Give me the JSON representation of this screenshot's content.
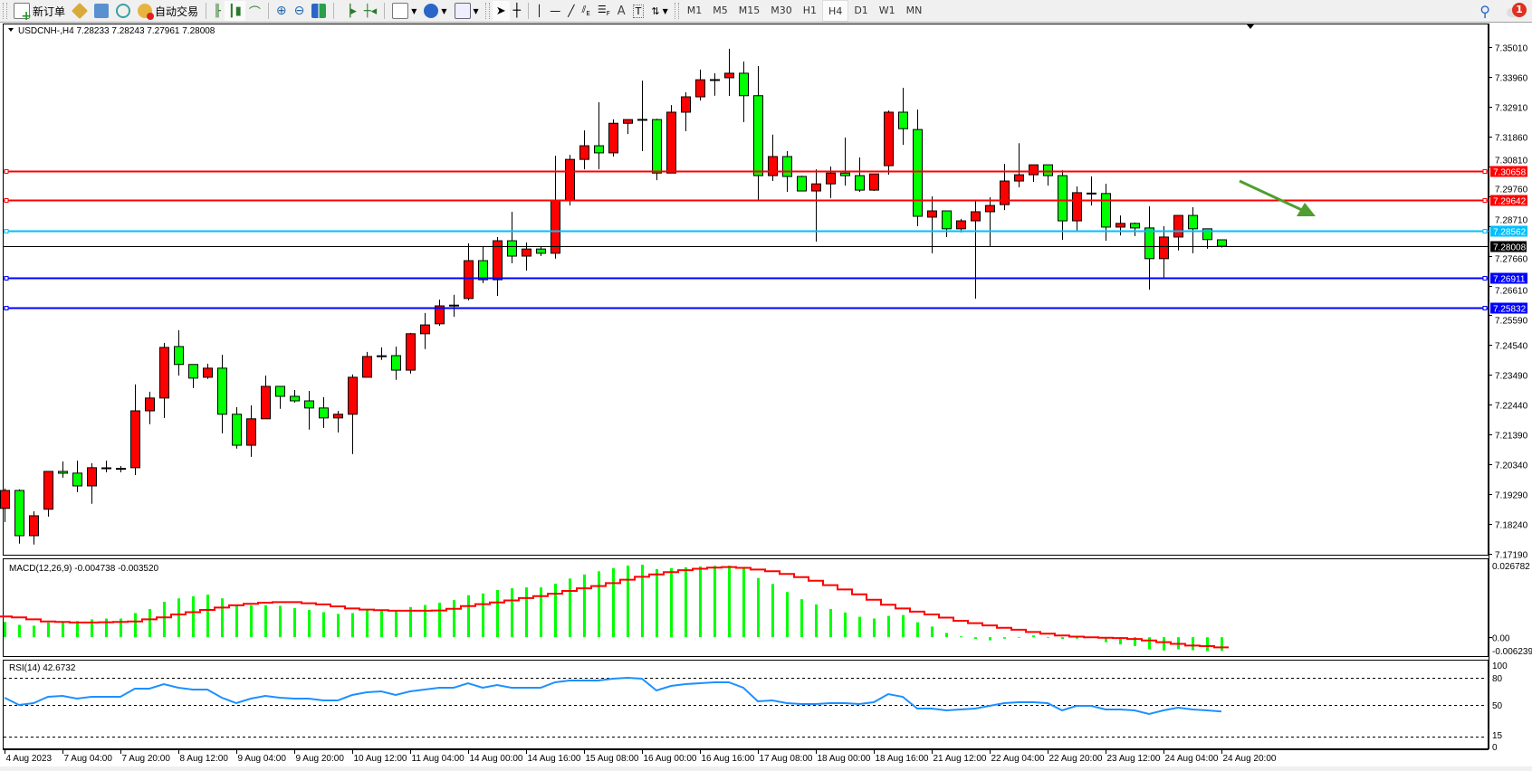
{
  "toolbar": {
    "new_order_label": "新订单",
    "auto_trading_label": "自动交易",
    "timeframes": [
      "M1",
      "M5",
      "M15",
      "M30",
      "H1",
      "H4",
      "D1",
      "W1",
      "MN"
    ],
    "active_timeframe": "H4",
    "notification_count": "1",
    "icons": [
      "new-order-icon",
      "market-watch-icon",
      "data-window-icon",
      "signals-icon",
      "auto-trading-icon",
      "bar-chart-icon",
      "candlestick-icon",
      "line-chart-icon",
      "zoom-in-icon",
      "zoom-out-icon",
      "tile-windows-icon",
      "chart-shift-icon",
      "auto-scroll-icon",
      "indicators-icon",
      "periods-icon",
      "templates-icon",
      "cursor-icon",
      "crosshair-icon",
      "vertical-line-icon",
      "horizontal-line-icon",
      "trendline-icon",
      "equidistant-channel-icon",
      "fibonacci-icon",
      "text-icon",
      "text-label-icon",
      "arrows-icon",
      "search-icon",
      "notifications-icon"
    ]
  },
  "chart": {
    "header": "USDCNH-,H4  7.28233 7.28243 7.27961 7.28008",
    "price_ticks": [
      "7.35010",
      "7.33960",
      "7.32910",
      "7.31860",
      "7.30810",
      "7.29760",
      "7.28710",
      "7.27660",
      "7.26610",
      "7.25590",
      "7.24540",
      "7.23490",
      "7.22440",
      "7.21390",
      "7.20340",
      "7.19290",
      "7.18240",
      "7.17190"
    ],
    "horizontal_lines": [
      {
        "price": "7.30658",
        "color": "#ff0000"
      },
      {
        "price": "7.29642",
        "color": "#ff0000"
      },
      {
        "price": "7.28562",
        "color": "#00bfff"
      },
      {
        "price": "7.26911",
        "color": "#0000ff"
      },
      {
        "price": "7.25832",
        "color": "#0000ff"
      }
    ],
    "current_price": "7.28008",
    "time_labels": [
      "4 Aug 2023",
      "7 Aug 04:00",
      "7 Aug 20:00",
      "8 Aug 12:00",
      "9 Aug 04:00",
      "9 Aug 20:00",
      "10 Aug 12:00",
      "11 Aug 04:00",
      "14 Aug 00:00",
      "14 Aug 16:00",
      "15 Aug 08:00",
      "16 Aug 00:00",
      "16 Aug 16:00",
      "17 Aug 08:00",
      "18 Aug 00:00",
      "18 Aug 16:00",
      "21 Aug 12:00",
      "22 Aug 04:00",
      "22 Aug 20:00",
      "23 Aug 12:00",
      "24 Aug 04:00",
      "24 Aug 20:00"
    ],
    "macd_label": "MACD(12,26,9) -0.004738 -0.003520",
    "macd_ticks": [
      "0.026782",
      "0.00",
      "-0.006239"
    ],
    "rsi_label": "RSI(14) 42.6732",
    "rsi_ticks": [
      "100",
      "80",
      "50",
      "15",
      "0"
    ],
    "colors": {
      "bull": "#ff0000",
      "bear": "#00ff00",
      "macd_hist": "#00ff00",
      "macd_signal": "#ff0000",
      "rsi": "#1e90ff",
      "arrow": "#4f9e2f"
    }
  },
  "chart_data": {
    "type": "candlestick",
    "symbol": "USDCNH-",
    "timeframe": "H4",
    "ylim": [
      7.1719,
      7.3501
    ],
    "ohlc": [
      [
        7.1879,
        7.1949,
        7.1831,
        7.1942
      ],
      [
        7.1942,
        7.1946,
        7.1755,
        7.1783
      ],
      [
        7.1783,
        7.1869,
        7.1752,
        7.1853
      ],
      [
        7.1876,
        7.2009,
        7.185,
        7.2009
      ],
      [
        7.2009,
        7.2044,
        7.1987,
        7.2003
      ],
      [
        7.2003,
        7.2047,
        7.1936,
        7.1958
      ],
      [
        7.1958,
        7.2038,
        7.1895,
        7.2022
      ],
      [
        7.2019,
        7.2047,
        7.2006,
        7.202
      ],
      [
        7.2019,
        7.2028,
        7.2006,
        7.2018
      ],
      [
        7.2022,
        7.2315,
        7.1996,
        7.2222
      ],
      [
        7.2222,
        7.2289,
        7.2175,
        7.2267
      ],
      [
        7.2267,
        7.2461,
        7.2197,
        7.2445
      ],
      [
        7.2448,
        7.2505,
        7.2346,
        7.2385
      ],
      [
        7.2385,
        7.2385,
        7.2302,
        7.2337
      ],
      [
        7.234,
        7.2388,
        7.2334,
        7.2372
      ],
      [
        7.2372,
        7.2419,
        7.2143,
        7.221
      ],
      [
        7.221,
        7.2235,
        7.2089,
        7.2101
      ],
      [
        7.2101,
        7.2241,
        7.206,
        7.2194
      ],
      [
        7.2194,
        7.2346,
        7.2194,
        7.2308
      ],
      [
        7.2308,
        7.2308,
        7.2229,
        7.2273
      ],
      [
        7.2273,
        7.2295,
        7.2251,
        7.2257
      ],
      [
        7.2257,
        7.2292,
        7.2156,
        7.2232
      ],
      [
        7.2232,
        7.227,
        7.2162,
        7.2197
      ],
      [
        7.2197,
        7.2222,
        7.2146,
        7.221
      ],
      [
        7.221,
        7.235,
        7.207,
        7.234
      ],
      [
        7.234,
        7.2429,
        7.234,
        7.2413
      ],
      [
        7.2413,
        7.2445,
        7.2401,
        7.2414
      ],
      [
        7.2416,
        7.2448,
        7.2331,
        7.2365
      ],
      [
        7.2365,
        7.2496,
        7.2353,
        7.2493
      ],
      [
        7.2493,
        7.2566,
        7.2439,
        7.2524
      ],
      [
        7.2528,
        7.2613,
        7.2521,
        7.2591
      ],
      [
        7.2591,
        7.263,
        7.2553,
        7.2592
      ],
      [
        7.2617,
        7.2811,
        7.261,
        7.275
      ],
      [
        7.275,
        7.2801,
        7.2671,
        7.2683
      ],
      [
        7.2683,
        7.2833,
        7.2626,
        7.282
      ],
      [
        7.282,
        7.2922,
        7.2741,
        7.2766
      ],
      [
        7.2766,
        7.2814,
        7.2715,
        7.2791
      ],
      [
        7.2791,
        7.2798,
        7.2766,
        7.2776
      ],
      [
        7.2776,
        7.3119,
        7.2757,
        7.2963
      ],
      [
        7.2963,
        7.3122,
        7.2944,
        7.3106
      ],
      [
        7.3106,
        7.3208,
        7.3071,
        7.3154
      ],
      [
        7.3154,
        7.3307,
        7.3071,
        7.3129
      ],
      [
        7.3129,
        7.3247,
        7.3116,
        7.3233
      ],
      [
        7.3233,
        7.3246,
        7.3195,
        7.3246
      ],
      [
        7.3246,
        7.3383,
        7.3135,
        7.3245
      ],
      [
        7.3246,
        7.3249,
        7.3033,
        7.3058
      ],
      [
        7.3058,
        7.3297,
        7.3058,
        7.3272
      ],
      [
        7.3272,
        7.3342,
        7.3205,
        7.3326
      ],
      [
        7.3326,
        7.3422,
        7.3313,
        7.3386
      ],
      [
        7.3386,
        7.3409,
        7.333,
        7.3385
      ],
      [
        7.3393,
        7.3495,
        7.3329,
        7.3409
      ],
      [
        7.3409,
        7.345,
        7.3237,
        7.333
      ],
      [
        7.333,
        7.3434,
        7.296,
        7.3049
      ],
      [
        7.3049,
        7.3193,
        7.303,
        7.3116
      ],
      [
        7.3116,
        7.3135,
        7.2992,
        7.3046
      ],
      [
        7.3046,
        7.3049,
        7.2995,
        7.2995
      ],
      [
        7.2995,
        7.3071,
        7.2817,
        7.302
      ],
      [
        7.302,
        7.3081,
        7.297,
        7.3058
      ],
      [
        7.3058,
        7.3183,
        7.3014,
        7.3049
      ],
      [
        7.3049,
        7.3113,
        7.2992,
        7.2998
      ],
      [
        7.2998,
        7.3055,
        7.2995,
        7.3055
      ],
      [
        7.3084,
        7.3278,
        7.3052,
        7.3272
      ],
      [
        7.3272,
        7.3358,
        7.3157,
        7.3214
      ],
      [
        7.3211,
        7.3281,
        7.2871,
        7.2906
      ],
      [
        7.2903,
        7.2976,
        7.2776,
        7.2925
      ],
      [
        7.2925,
        7.2925,
        7.2833,
        7.2862
      ],
      [
        7.2862,
        7.2897,
        7.2849,
        7.289
      ],
      [
        7.289,
        7.2963,
        7.2616,
        7.2922
      ],
      [
        7.2922,
        7.2973,
        7.2801,
        7.2944
      ],
      [
        7.2947,
        7.309,
        7.2928,
        7.303
      ],
      [
        7.303,
        7.3163,
        7.3008,
        7.3052
      ],
      [
        7.3052,
        7.3087,
        7.3027,
        7.3087
      ],
      [
        7.3087,
        7.3087,
        7.3014,
        7.3049
      ],
      [
        7.3049,
        7.3068,
        7.2823,
        7.289
      ],
      [
        7.289,
        7.3011,
        7.2852,
        7.2989
      ],
      [
        7.2985,
        7.3046,
        7.2944,
        7.2986
      ],
      [
        7.2986,
        7.302,
        7.282,
        7.2868
      ],
      [
        7.2868,
        7.2909,
        7.2839,
        7.2881
      ],
      [
        7.2881,
        7.2884,
        7.2836,
        7.2865
      ],
      [
        7.2865,
        7.2941,
        7.2648,
        7.2757
      ],
      [
        7.2757,
        7.2871,
        7.2687,
        7.2833
      ],
      [
        7.2833,
        7.2909,
        7.2786,
        7.2909
      ],
      [
        7.2909,
        7.2938,
        7.2776,
        7.2862
      ],
      [
        7.2862,
        7.2862,
        7.2792,
        7.2824
      ],
      [
        7.28233,
        7.28243,
        7.27961,
        7.28008
      ]
    ],
    "macd": {
      "ylim": [
        -0.006239,
        0.026782
      ],
      "histogram": [
        0.0053,
        0.0043,
        0.004,
        0.0051,
        0.0055,
        0.0056,
        0.0062,
        0.0065,
        0.0065,
        0.0084,
        0.0098,
        0.0123,
        0.0135,
        0.0142,
        0.0148,
        0.0135,
        0.0113,
        0.0111,
        0.0111,
        0.0109,
        0.0101,
        0.0095,
        0.0087,
        0.0081,
        0.0084,
        0.0094,
        0.0092,
        0.009,
        0.0105,
        0.0112,
        0.012,
        0.0129,
        0.0146,
        0.0152,
        0.0164,
        0.017,
        0.0173,
        0.0173,
        0.0186,
        0.0204,
        0.0218,
        0.0229,
        0.024,
        0.0249,
        0.0252,
        0.0237,
        0.024,
        0.0243,
        0.0246,
        0.0248,
        0.0249,
        0.0241,
        0.0206,
        0.0185,
        0.0157,
        0.0132,
        0.0114,
        0.0098,
        0.0086,
        0.0071,
        0.0065,
        0.0074,
        0.0077,
        0.0052,
        0.0037,
        0.0015,
        0.0003,
        -0.0006,
        -0.0011,
        -0.0005,
        0.0001,
        0.0006,
        0.0001,
        -0.0006,
        -0.0005,
        0.0,
        -0.0017,
        -0.0025,
        -0.0031,
        -0.0042,
        -0.0046,
        -0.0042,
        -0.0045,
        -0.0048,
        -0.004738
      ],
      "signal": [
        0.0072,
        0.0069,
        0.0062,
        0.0055,
        0.0053,
        0.0051,
        0.0051,
        0.0052,
        0.0053,
        0.0055,
        0.0062,
        0.0069,
        0.0079,
        0.0087,
        0.0095,
        0.0103,
        0.0111,
        0.0116,
        0.012,
        0.0122,
        0.0122,
        0.0118,
        0.0114,
        0.0107,
        0.01,
        0.0096,
        0.0094,
        0.0092,
        0.0092,
        0.0092,
        0.0093,
        0.0099,
        0.0108,
        0.0115,
        0.0121,
        0.0128,
        0.0136,
        0.0143,
        0.0151,
        0.0161,
        0.017,
        0.0178,
        0.0188,
        0.02,
        0.021,
        0.0218,
        0.0226,
        0.0233,
        0.0238,
        0.0242,
        0.0244,
        0.0241,
        0.0235,
        0.0229,
        0.022,
        0.0209,
        0.0196,
        0.0181,
        0.0166,
        0.0149,
        0.013,
        0.0113,
        0.01,
        0.0089,
        0.0079,
        0.0068,
        0.0057,
        0.0049,
        0.0041,
        0.0033,
        0.0026,
        0.0018,
        0.0012,
        0.0006,
        0.0002,
        0.0,
        -0.0002,
        -0.0003,
        -0.0006,
        -0.0011,
        -0.0017,
        -0.0023,
        -0.0029,
        -0.0031,
        -0.00352
      ]
    },
    "rsi": {
      "ylim": [
        0,
        100
      ],
      "levels": [
        80,
        50,
        15
      ],
      "values": [
        58,
        50,
        52,
        59,
        60,
        57,
        59,
        59,
        59,
        68,
        68,
        73,
        69,
        67,
        67,
        58,
        52,
        57,
        60,
        58,
        57,
        57,
        55,
        55,
        61,
        64,
        65,
        61,
        65,
        67,
        69,
        69,
        74,
        69,
        72,
        69,
        69,
        69,
        75,
        77,
        77,
        77,
        79,
        80,
        79,
        66,
        71,
        73,
        74,
        75,
        75,
        69,
        54,
        55,
        52,
        51,
        51,
        52,
        52,
        51,
        53,
        62,
        59,
        46,
        46,
        44,
        45,
        46,
        49,
        52,
        53,
        53,
        52,
        44,
        49,
        49,
        45,
        45,
        44,
        40,
        44,
        47,
        45,
        44,
        42.6732
      ]
    }
  }
}
